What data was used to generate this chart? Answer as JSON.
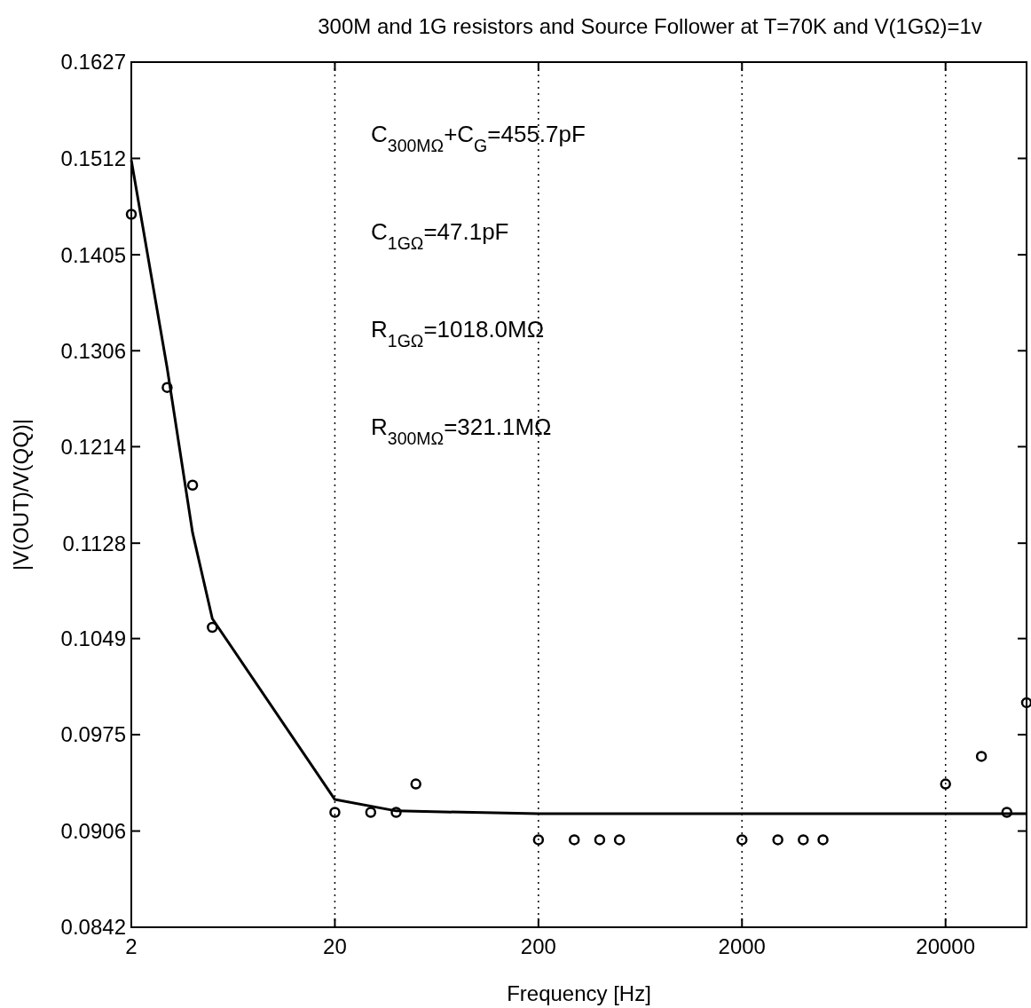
{
  "chart_data": {
    "type": "scatter",
    "title": "300M and 1G resistors and Source Follower at T=70K and V(1GΩ)=1v",
    "xlabel": "Frequency [Hz]",
    "ylabel": "|V(OUT)/V(QQ)|",
    "log": "xy",
    "grid": "x",
    "xlim": [
      2,
      50000
    ],
    "xticks": [
      2,
      20,
      200,
      2000,
      20000
    ],
    "ylim": [
      0.0842,
      0.1627
    ],
    "yticks": [
      0.0842,
      0.0906,
      0.0975,
      0.1049,
      0.1128,
      0.1214,
      0.1306,
      0.1405,
      0.1512,
      0.1627
    ],
    "annotations": [
      "C$_{300MΩ}$+C$_{G}$=455.7pF",
      "C$_{1GΩ}$=47.1pF",
      "R$_{1GΩ}$=1018.0MΩ",
      "R$_{300MΩ}$=321.1MΩ"
    ],
    "series": [
      {
        "type": "scatter",
        "marker": "circle",
        "color": "#000000",
        "x": [
          2,
          3,
          4,
          5,
          20,
          30,
          40,
          50,
          200,
          300,
          400,
          500,
          2000,
          3000,
          4000,
          5000,
          20000,
          30000,
          40000,
          50000
        ],
        "values": [
          0.1449,
          0.127,
          0.1179,
          0.1058,
          0.0919,
          0.0919,
          0.0919,
          0.0939,
          0.09,
          0.09,
          0.09,
          0.09,
          0.09,
          0.09,
          0.09,
          0.09,
          0.0939,
          0.0959,
          0.0919,
          0.0999
        ]
      },
      {
        "type": "line",
        "color": "#000000",
        "x": [
          2,
          3,
          4,
          5,
          20,
          40,
          200,
          2000,
          20000,
          50000
        ],
        "values": [
          0.151,
          0.1289,
          0.1137,
          0.1065,
          0.0928,
          0.092,
          0.0918,
          0.0918,
          0.0918,
          0.0918
        ]
      }
    ]
  }
}
